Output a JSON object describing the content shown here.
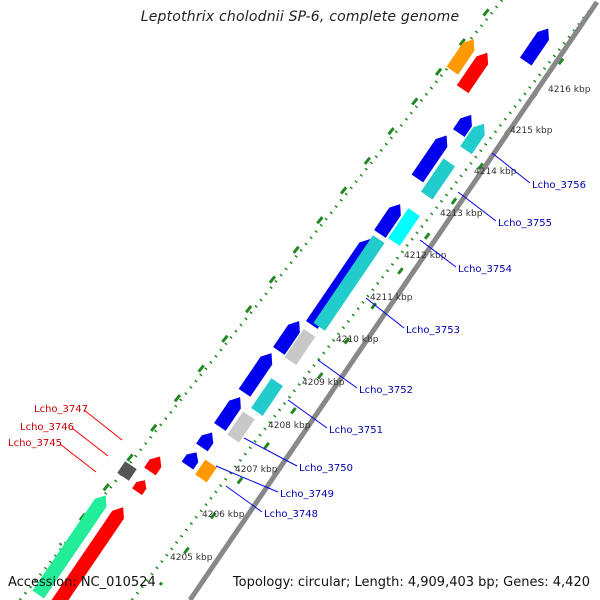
{
  "title": "Leptothrix cholodnii SP-6, complete genome",
  "accession": "Accession: NC_010524",
  "topology": "Topology: circular; Length: 4,909,403 bp; Genes: 4,420",
  "colors": {
    "background": "#ffffff",
    "backbone": "#888888",
    "forward_cds": "#0000ee",
    "reverse_cds": "#ff0000",
    "cyan_cds": "#22cccc",
    "aqua_cds": "#00ffff",
    "green_cds": "#22ee99",
    "grey_cds": "#c8c8c8",
    "dark_grey_cds": "#555555",
    "orange_cds": "#ff9900",
    "blue_label": "#0000aa",
    "red_label": "#cc0000",
    "tick_green": "#228822"
  },
  "scale_labels": [
    "4205 kbp",
    "4206 kbp",
    "4207 kbp",
    "4208 kbp",
    "4209 kbp",
    "4210 kbp",
    "4211 kbp",
    "4212 kbp",
    "4213 kbp",
    "4214 kbp",
    "4215 kbp",
    "4216 kbp"
  ],
  "gene_labels_blue": [
    "Lcho_3748",
    "Lcho_3749",
    "Lcho_3750",
    "Lcho_3751",
    "Lcho_3752",
    "Lcho_3753",
    "Lcho_3754",
    "Lcho_3755",
    "Lcho_3756"
  ],
  "gene_labels_red": [
    "Lcho_3747",
    "Lcho_3746",
    "Lcho_3745"
  ]
}
